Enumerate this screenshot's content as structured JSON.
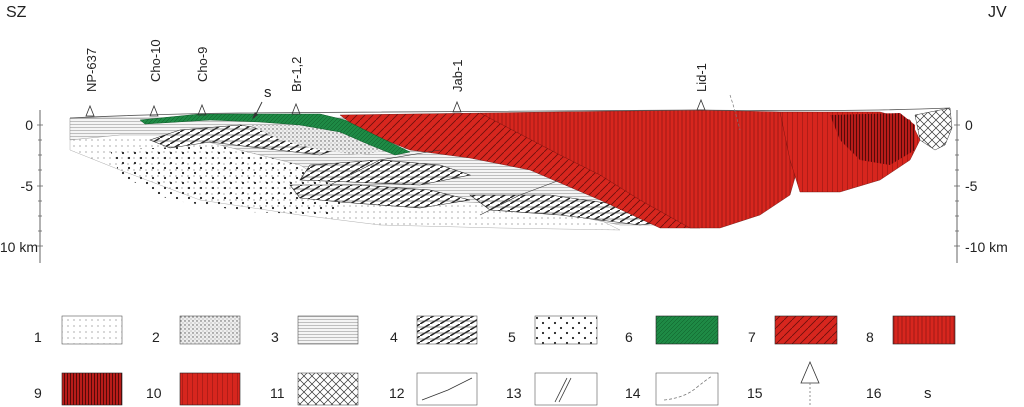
{
  "header": {
    "left": "SZ",
    "right": "JV"
  },
  "axis": {
    "left_ticks": [
      "0",
      "-5",
      "-10 km"
    ],
    "right_ticks": [
      "0",
      "-5",
      "-10 km"
    ]
  },
  "boreholes": [
    "NP-637",
    "Cho-10",
    "Cho-9",
    "Br-1,2",
    "Jab-1",
    "Lid-1"
  ],
  "section_marker": "s",
  "legend": [
    {
      "n": "1",
      "pattern": "fine-dots"
    },
    {
      "n": "2",
      "pattern": "dense-dots"
    },
    {
      "n": "3",
      "pattern": "horizontal-lines"
    },
    {
      "n": "4",
      "pattern": "hatched-blocks"
    },
    {
      "n": "5",
      "pattern": "sparse-dots"
    },
    {
      "n": "6",
      "pattern": "green"
    },
    {
      "n": "7",
      "pattern": "red-diagonal"
    },
    {
      "n": "8",
      "pattern": "red-vertical"
    },
    {
      "n": "9",
      "pattern": "dark-red-vertical"
    },
    {
      "n": "10",
      "pattern": "red-vertical-fine"
    },
    {
      "n": "11",
      "pattern": "crosshatch"
    },
    {
      "n": "12",
      "pattern": "fault-line"
    },
    {
      "n": "13",
      "pattern": "double-fault"
    },
    {
      "n": "14",
      "pattern": "dashed-curve"
    },
    {
      "n": "15",
      "pattern": "borehole-symbol"
    },
    {
      "n": "16",
      "pattern": "text",
      "text": "s"
    }
  ],
  "colors": {
    "green": "#1e8a45",
    "red": "#d7261e",
    "dark_red": "#b81c1a",
    "ink": "#333333"
  }
}
